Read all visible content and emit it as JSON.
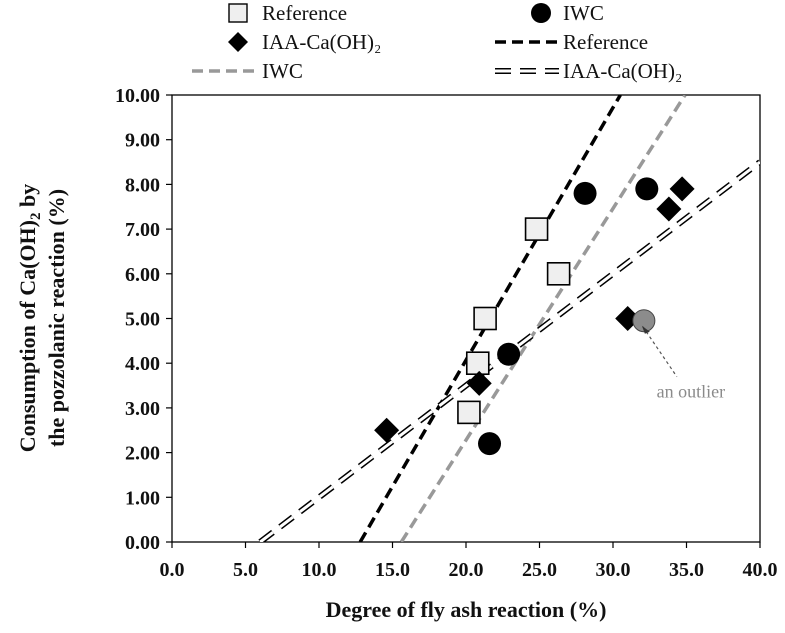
{
  "chart_data": {
    "type": "scatter",
    "xlabel": "Degree of fly ash reaction (%)",
    "ylabel_line1": "Consumption of Ca(OH)",
    "ylabel_sub": "2",
    "ylabel_line1_end": " by",
    "ylabel_line2": "the pozzolanic reaction (%)",
    "xlim": [
      0,
      40
    ],
    "ylim": [
      0,
      10
    ],
    "x_ticks": [
      0,
      5,
      10,
      15,
      20,
      25,
      30,
      35,
      40
    ],
    "y_ticks": [
      0,
      1,
      2,
      3,
      4,
      5,
      6,
      7,
      8,
      9,
      10
    ],
    "x_tick_labels": [
      "0.0",
      "5.0",
      "10.0",
      "15.0",
      "20.0",
      "25.0",
      "30.0",
      "35.0",
      "40.0"
    ],
    "y_tick_labels": [
      "0.00",
      "1.00",
      "2.00",
      "3.00",
      "4.00",
      "5.00",
      "6.00",
      "7.00",
      "8.00",
      "9.00",
      "10.00"
    ],
    "grid": false,
    "legend_placement": "top",
    "series": [
      {
        "name": "Reference",
        "marker": "square",
        "color": "#efefef",
        "points": [
          [
            20.2,
            2.9
          ],
          [
            20.8,
            4.0
          ],
          [
            21.3,
            5.0
          ],
          [
            24.8,
            7.0
          ],
          [
            26.3,
            6.0
          ]
        ]
      },
      {
        "name": "IWC",
        "marker": "circle",
        "color": "#000000",
        "points": [
          [
            21.6,
            2.2
          ],
          [
            22.9,
            4.2
          ],
          [
            28.1,
            7.8
          ],
          [
            32.3,
            7.9
          ]
        ]
      },
      {
        "name": "IAA-Ca(OH)₂",
        "marker": "diamond",
        "color": "#000000",
        "points": [
          [
            14.6,
            2.5
          ],
          [
            20.9,
            3.55
          ],
          [
            31.0,
            5.0
          ],
          [
            33.8,
            7.45
          ],
          [
            34.7,
            7.9
          ]
        ]
      }
    ],
    "outlier": {
      "x": 32.1,
      "y": 4.95,
      "color": "#8c8c8c",
      "label": "an outlier"
    },
    "trendlines": [
      {
        "name": "Reference",
        "style": "black-dashed",
        "color": "#000000",
        "x": [
          12.8,
          30.5
        ],
        "y": [
          0.0,
          10.0
        ]
      },
      {
        "name": "IWC",
        "style": "gray-dashed",
        "color": "#999999",
        "x": [
          15.6,
          34.9
        ],
        "y": [
          0.0,
          10.0
        ]
      },
      {
        "name": "IAA-Ca(OH)₂",
        "style": "double-dashed",
        "color": "#000000",
        "x": [
          6.0,
          40.0
        ],
        "y": [
          0.0,
          8.5
        ]
      }
    ],
    "legend": [
      {
        "label": "Reference",
        "kind": "square"
      },
      {
        "label": "IWC",
        "kind": "circle"
      },
      {
        "label": "IAA-Ca(OH)₂",
        "kind": "diamond"
      },
      {
        "label": "Reference",
        "kind": "black-dashed"
      },
      {
        "label": "IWC",
        "kind": "gray-dashed"
      },
      {
        "label": "IAA-Ca(OH)₂",
        "kind": "double-dashed"
      }
    ]
  }
}
